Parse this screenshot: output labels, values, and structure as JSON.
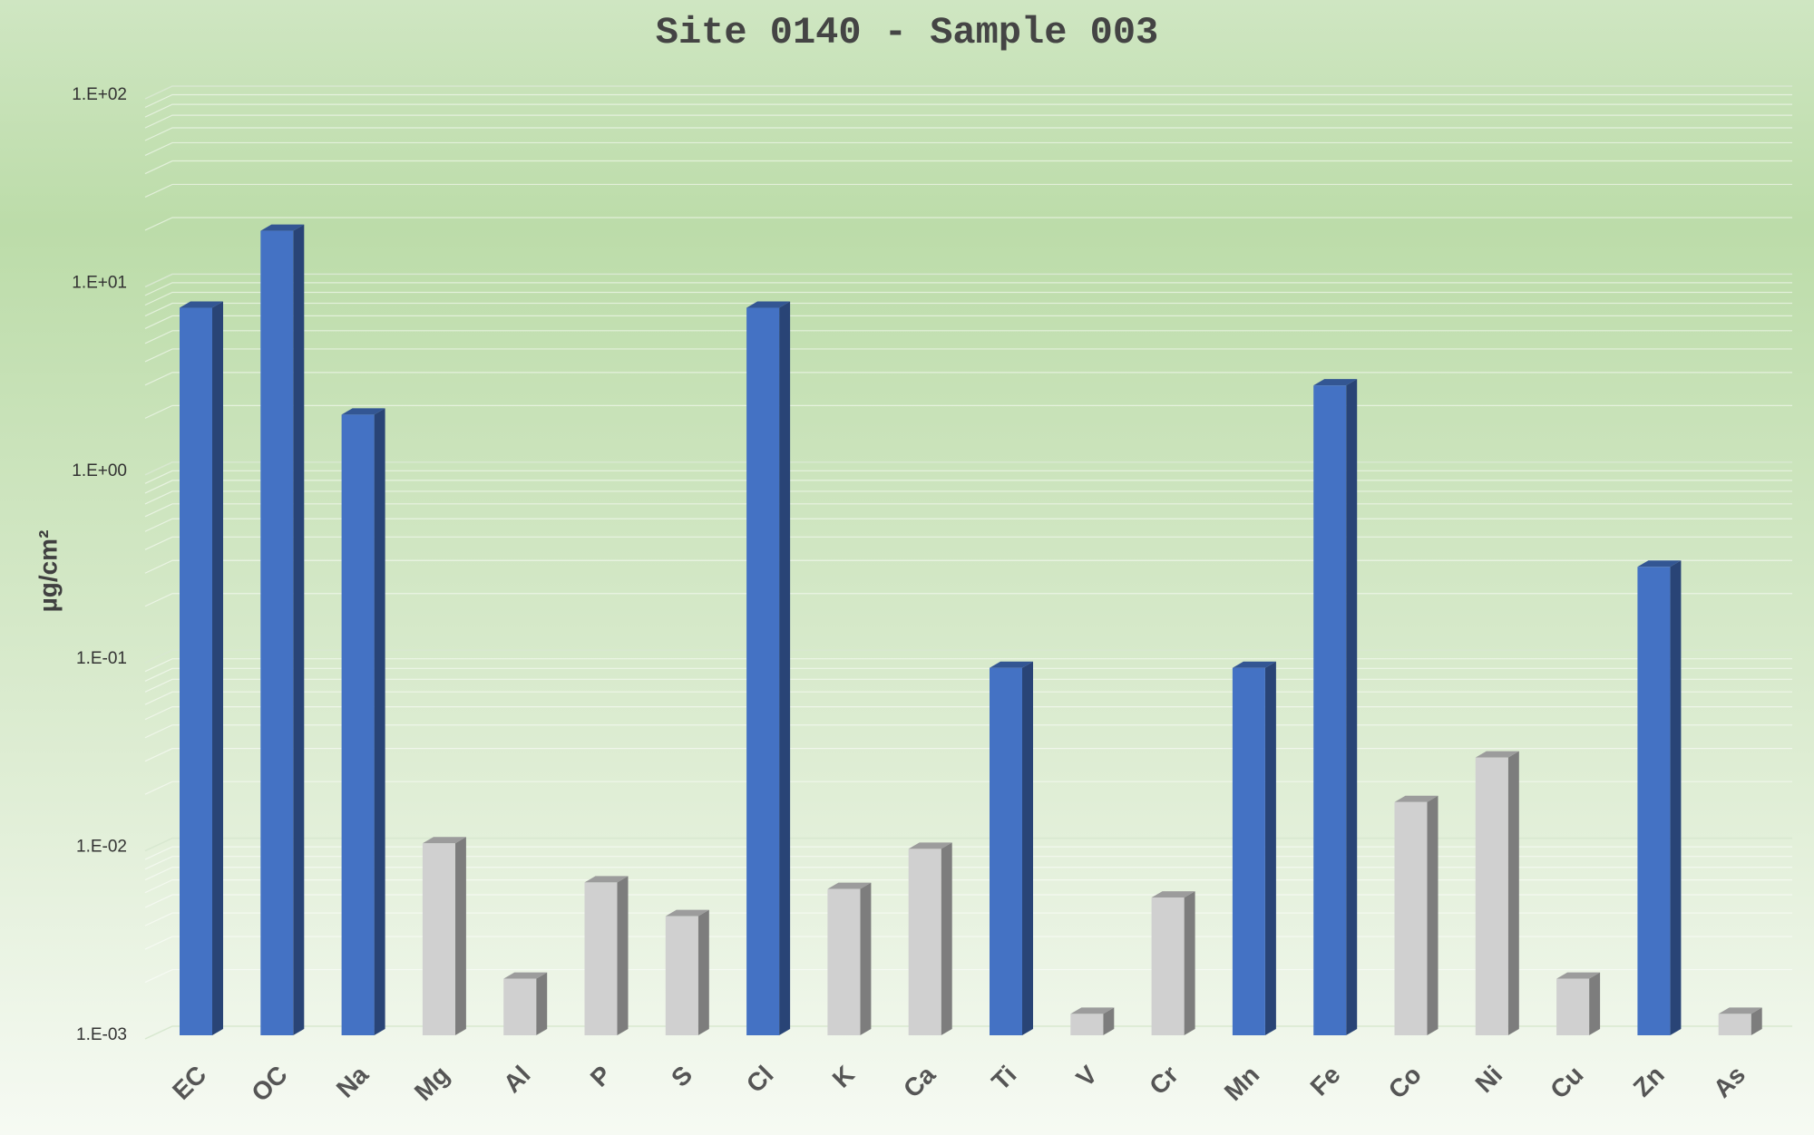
{
  "chart_data": {
    "type": "bar3d",
    "title": "Site 0140 - Sample 003",
    "y_label": "µg/cm²",
    "categories": [
      "EC",
      "OC",
      "Na",
      "Mg",
      "Al",
      "P",
      "S",
      "Cl",
      "K",
      "Ca",
      "Ti",
      "V",
      "Cr",
      "Mn",
      "Fe",
      "Co",
      "Ni",
      "Cu",
      "Zn",
      "As"
    ],
    "values": [
      7.4,
      19,
      2.0,
      0.0105,
      0.002,
      0.0065,
      0.0043,
      7.4,
      0.006,
      0.0098,
      0.09,
      0.0013,
      0.0054,
      0.09,
      2.86,
      0.0174,
      0.03,
      0.002,
      0.31,
      0.0013
    ],
    "colors": [
      "#4472c4",
      "#4472c4",
      "#4472c4",
      "#d0d0d0",
      "#d0d0d0",
      "#d0d0d0",
      "#d0d0d0",
      "#4472c4",
      "#d0d0d0",
      "#d0d0d0",
      "#4472c4",
      "#d0d0d0",
      "#d0d0d0",
      "#4472c4",
      "#4472c4",
      "#d0d0d0",
      "#d0d0d0",
      "#d0d0d0",
      "#4472c4",
      "#d0d0d0"
    ],
    "ylim": [
      0.001,
      100
    ],
    "log_scale": true,
    "grid": true,
    "yticks": [
      {
        "value": 0.001,
        "label": "1.E-03"
      },
      {
        "value": 0.01,
        "label": "1.E-02"
      },
      {
        "value": 0.1,
        "label": "1.E-01"
      },
      {
        "value": 1,
        "label": "1.E+00"
      },
      {
        "value": 10,
        "label": "1.E+01"
      },
      {
        "value": 100,
        "label": "1.E+02"
      }
    ]
  }
}
